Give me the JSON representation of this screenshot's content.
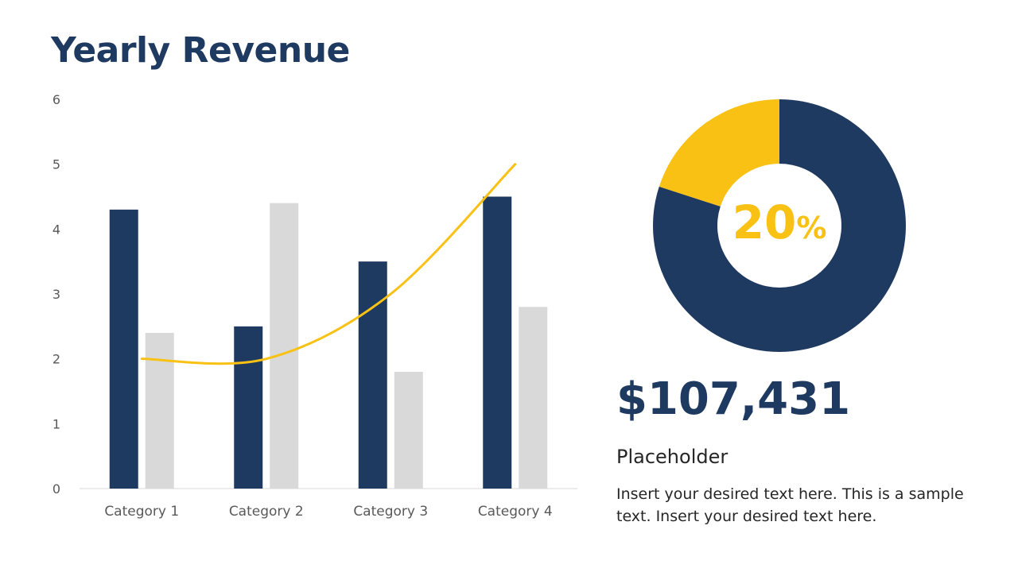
{
  "slide": {
    "title": "Yearly Revenue",
    "amount": "$107,431",
    "subtitle": "Placeholder",
    "description": "Insert your desired text here. This is a sample text. Insert your desired text here."
  },
  "donut": {
    "percent_number": "20",
    "percent_symbol": "%",
    "highlight_fraction": 0.2,
    "highlight_color": "#f8c113",
    "base_color": "#1f3a60"
  },
  "chart_data": {
    "type": "bar",
    "categories": [
      "Category 1",
      "Category 2",
      "Category 3",
      "Category 4"
    ],
    "series": [
      {
        "type": "bar",
        "color": "#1f3a60",
        "values": [
          4.3,
          2.5,
          3.5,
          4.5
        ]
      },
      {
        "type": "bar",
        "color": "#d9d9d9",
        "values": [
          2.4,
          4.4,
          1.8,
          2.8
        ]
      },
      {
        "type": "line",
        "color": "#f8c113",
        "values": [
          2.0,
          2.0,
          3.0,
          5.0
        ]
      }
    ],
    "yticks": [
      "0",
      "1",
      "2",
      "3",
      "4",
      "5",
      "6"
    ],
    "ylim": [
      0,
      6
    ],
    "grid": false,
    "legend": "none"
  }
}
